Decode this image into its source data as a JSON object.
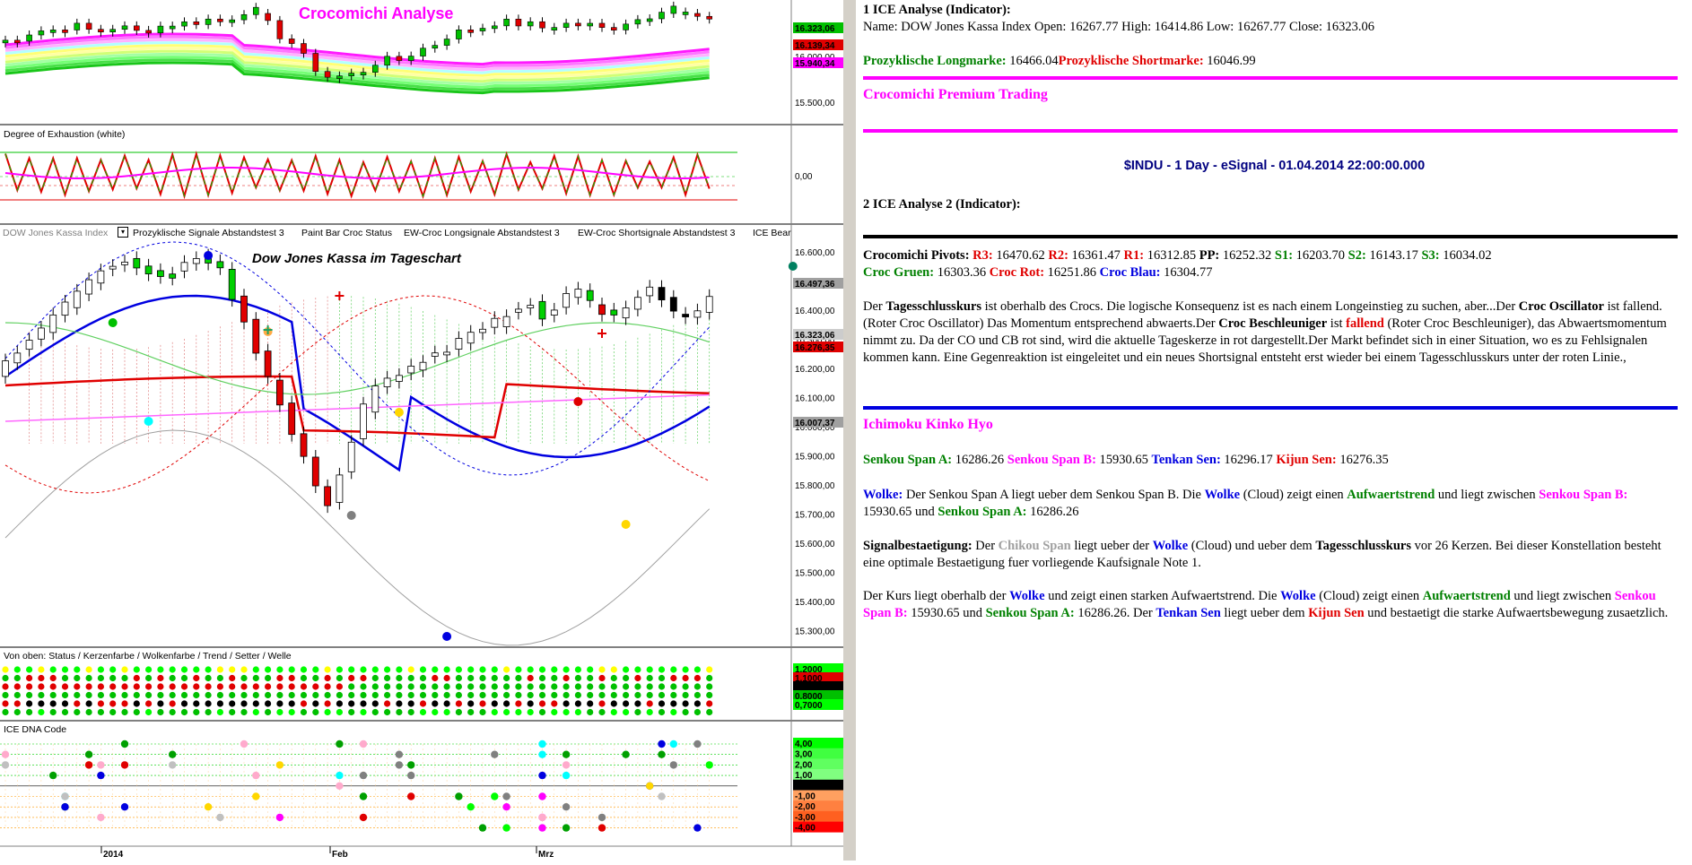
{
  "colors": {
    "magenta": "#ff00ff",
    "blue_rule": "#0000e0",
    "black_rule": "#000000",
    "candle_up": "#00c000",
    "candle_down": "#e00000",
    "tenkan": "#0000e0",
    "kijun": "#e00000"
  },
  "chart": {
    "pane1": {
      "title": "Crocomichi Analyse",
      "price_labels": [
        "16.323,06",
        "16.139,34",
        "16.000,00",
        "15.940,34",
        "15.500,00"
      ]
    },
    "pane2": {
      "title": "Degree of Exhaustion (white)",
      "axis_label": "0,00"
    },
    "pane3": {
      "legend": [
        "DOW Jones Kassa Index",
        "Prozyklische Signale Abstandstest 3",
        "Paint Bar Croc Status",
        "EW-Croc Longsignale Abstandstest 3",
        "EW-Croc Shortsignale Abstandstest 3",
        "ICE Bear"
      ],
      "title": "Dow Jones Kassa im Tageschart",
      "price_axis": [
        "16.600,00",
        "16.500,00",
        "16.400,00",
        "16.300,00",
        "16.200,00",
        "16.100,00",
        "16.000,00",
        "15.900,00",
        "15.800,00",
        "15.700,00",
        "15.600,00",
        "15.500,00",
        "15.400,00",
        "15.300,00"
      ],
      "tags": [
        "16.497,36",
        "16.323,06",
        "16.276,35",
        "16.007,37"
      ]
    },
    "pane4": {
      "title": "Von oben: Status / Kerzenfarbe / Wolkenfarbe / Trend / Setter / Welle",
      "tags": [
        "1,2000",
        "1,1000",
        "0,9000",
        "0,8000",
        "0,7000"
      ]
    },
    "pane5": {
      "title": "ICE DNA Code",
      "tags": [
        "4,00",
        "3,00",
        "2,00",
        "1,00",
        "0,00",
        "-1,00",
        "-2,00",
        "-3,00",
        "-4,00"
      ]
    },
    "time_axis": [
      "2014",
      "Feb",
      "Mrz"
    ]
  },
  "panel": {
    "section1_title": "1 ICE Analyse (Indicator):",
    "name_line": "Name: DOW Jones Kassa Index Open: 16267.77 High: 16414.86 Low: 16267.77 Close: 16323.06",
    "longmarke_label": "Prozyklische Longmarke:",
    "longmarke_value": "16466.04",
    "shortmarke_label": "Prozyklische Shortmarke:",
    "shortmarke_value": "16046.99",
    "premium_title": "Crocomichi Premium Trading",
    "indu_line": "$INDU - 1 Day - eSignal - 01.04.2014 22:00:00.000",
    "section2_title": "2 ICE Analyse 2 (Indicator):",
    "pivots": {
      "label": "Crocomichi Pivots:",
      "r3_label": "R3:",
      "r3": "16470.62",
      "r2_label": "R2:",
      "r2": "16361.47",
      "r1_label": "R1:",
      "r1": "16312.85",
      "pp_label": "PP:",
      "pp": "16252.32",
      "s1_label": "S1:",
      "s1": "16203.70",
      "s2_label": "S2:",
      "s2": "16143.17",
      "s3_label": "S3:",
      "s3": "16034.02",
      "gruen_label": "Croc Gruen:",
      "gruen": "16303.36",
      "rot_label": "Croc Rot:",
      "rot": "16251.86",
      "blau_label": "Croc Blau:",
      "blau": "16304.77"
    },
    "para1": {
      "t1": "Der ",
      "b1": "Tagesschlusskurs",
      "t2": " ist oberhalb des Crocs. Die logische Konsequenz ist es nach einem Longeinstieg zu suchen, aber...Der ",
      "b2": "Croc Oscillator",
      "t3": " ist fallend. (Roter Croc Oscillator) Das Momentum entsprechend abwaerts.Der ",
      "b3": "Croc Beschleuniger",
      "t4": " ist ",
      "b4": "fallend",
      "t5": " (Roter Croc Beschleuniger), das Abwaertsmomentum nimmt zu. Da der CO und CB rot sind, wird die aktuelle Tageskerze in rot dargestellt.Der Markt befindet sich in einer Situation, wo es zu Fehlsignalen kommen kann. Eine Gegenreaktion ist eingeleitet und ein neues Shortsignal entsteht erst wieder bei einem Tagesschlusskurs unter der roten Linie.,"
    },
    "ichimoku_title": "Ichimoku Kinko Hyo",
    "senkou": {
      "a_label": "Senkou Span A:",
      "a": "16286.26",
      "b_label": "Senkou Span B:",
      "b": "15930.65",
      "tenkan_label": "Tenkan Sen:",
      "tenkan": "16296.17",
      "kijun_label": "Kijun Sen:",
      "kijun": "16276.35"
    },
    "wolke": {
      "label": "Wolke:",
      "t1": " Der Senkou Span A liegt ueber dem Senkou Span B. Die ",
      "w": "Wolke",
      "t2": " (Cloud) zeigt einen ",
      "trend": "Aufwaertstrend",
      "t3": " und liegt zwischen ",
      "spanb": "Senkou Span B:",
      "t4": " 15930.65 und ",
      "spana": "Senkou Span A:",
      "t5": " 16286.26"
    },
    "signal": {
      "label": "Signalbestaetigung:",
      "t1": " Der ",
      "chikou": "Chikou Span",
      "t2": " liegt ueber der ",
      "w": "Wolke",
      "t3": " (Cloud) und ueber dem ",
      "tsk": "Tagesschlusskurs",
      "t4": " vor 26 Kerzen. Bei dieser Konstellation besteht eine optimale Bestaetigung fuer vorliegende Kaufsignale Note 1."
    },
    "kurs": {
      "t1": "Der Kurs liegt oberhalb der ",
      "w1": "Wolke",
      "t2": " und zeigt einen starken Aufwaertstrend. Die ",
      "w2": "Wolke",
      "t3": " (Cloud) zeigt einen ",
      "trend": "Aufwaertstrend",
      "t4": " und liegt zwischen ",
      "spanb": "Senkou Span B:",
      "t5": " 15930.65 und ",
      "spana": "Senkou Span A:",
      "t6": " 16286.26. Der ",
      "tenkan": "Tenkan Sen",
      "t7": " liegt ueber dem ",
      "kijun": "Kijun Sen",
      "t8": " und bestaetigt die starke Aufwaertsbewegung zusaetzlich."
    }
  }
}
